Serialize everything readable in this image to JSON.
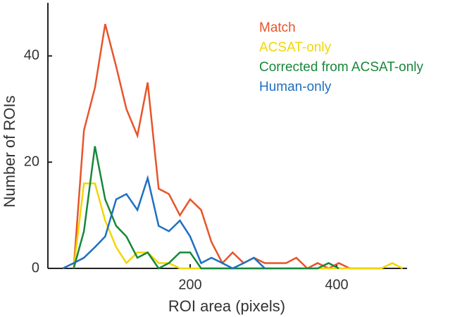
{
  "chart_data": {
    "type": "line",
    "x_label": "ROI area (pixels)",
    "y_label": "Number of ROIs",
    "x": [
      26,
      41,
      55,
      70,
      84,
      99,
      113,
      128,
      142,
      157,
      171,
      186,
      200,
      215,
      229,
      244,
      258,
      273,
      287,
      302,
      316,
      331,
      345,
      360,
      374,
      389,
      403,
      418,
      432,
      447,
      461,
      476,
      490
    ],
    "series": [
      {
        "name": "Match",
        "color": "#e8542b",
        "values": [
          null,
          0,
          26,
          34,
          46,
          38,
          30,
          25,
          35,
          15,
          14,
          10,
          13,
          11,
          5,
          1,
          3,
          1,
          2,
          1,
          1,
          1,
          2,
          0,
          1,
          0,
          1,
          0,
          0,
          0,
          0,
          null,
          null
        ]
      },
      {
        "name": "ACSAT-only",
        "color": "#f2d600",
        "values": [
          null,
          0,
          16,
          16,
          9,
          4,
          1,
          3,
          3,
          1,
          1,
          0,
          0,
          0,
          0,
          0,
          0,
          0,
          0,
          0,
          0,
          0,
          0,
          0,
          0,
          0,
          0,
          0,
          0,
          0,
          0,
          1,
          0
        ]
      },
      {
        "name": "Corrected from ACSAT-only",
        "color": "#17883a",
        "values": [
          null,
          0,
          7,
          23,
          13,
          8,
          6,
          2,
          3,
          0,
          1,
          3,
          3,
          0,
          0,
          0,
          0,
          0,
          0,
          0,
          0,
          0,
          0,
          0,
          0,
          1,
          0,
          null,
          null,
          null,
          null,
          null,
          null
        ]
      },
      {
        "name": "Human-only",
        "color": "#1f6fc1",
        "values": [
          0,
          1,
          2,
          4,
          6,
          13,
          14,
          11,
          17,
          8,
          7,
          9,
          6,
          1,
          2,
          1,
          0,
          1,
          2,
          0,
          null,
          null,
          null,
          null,
          null,
          null,
          null,
          null,
          null,
          null,
          null,
          null,
          null
        ]
      }
    ],
    "xlim": [
      0,
      500
    ],
    "ylim": [
      0,
      50
    ],
    "xticks": [
      200,
      400
    ],
    "yticks": [
      0,
      20,
      40
    ]
  }
}
